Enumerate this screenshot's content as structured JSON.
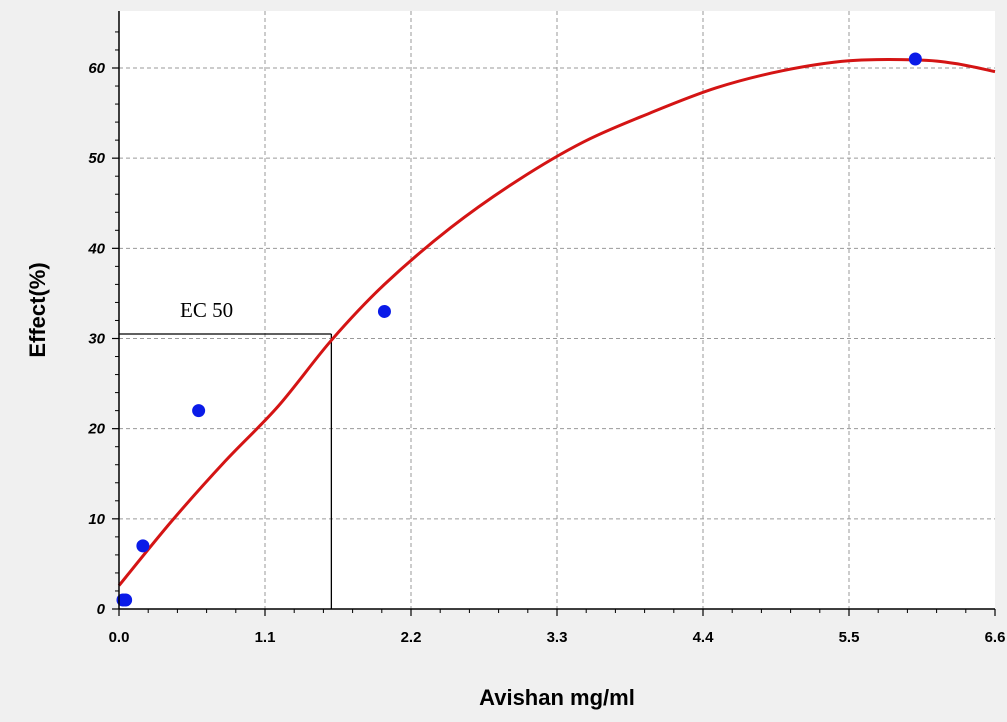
{
  "chart_data": {
    "type": "scatter",
    "title": "",
    "xlabel": "Avishan  mg/ml",
    "ylabel": "Effect(%)",
    "xlim": [
      0,
      6.6
    ],
    "ylim": [
      0,
      65
    ],
    "x_ticks": [
      "0.0",
      "1.1",
      "2.2",
      "3.3",
      "4.4",
      "5.5",
      "6.6"
    ],
    "y_ticks": [
      "0",
      "10",
      "20",
      "30",
      "40",
      "50",
      "60"
    ],
    "grid": true,
    "points": [
      {
        "x": 0.03,
        "y": 1
      },
      {
        "x": 0.05,
        "y": 1
      },
      {
        "x": 0.18,
        "y": 7
      },
      {
        "x": 0.6,
        "y": 22
      },
      {
        "x": 2.0,
        "y": 33
      },
      {
        "x": 6.0,
        "y": 61
      }
    ],
    "fit_curve": [
      {
        "x": 0.0,
        "y": 2.6
      },
      {
        "x": 0.4,
        "y": 9.8
      },
      {
        "x": 0.8,
        "y": 16.4
      },
      {
        "x": 1.2,
        "y": 22.5
      },
      {
        "x": 1.6,
        "y": 29.8
      },
      {
        "x": 2.0,
        "y": 36.0
      },
      {
        "x": 2.5,
        "y": 42.3
      },
      {
        "x": 3.0,
        "y": 47.5
      },
      {
        "x": 3.5,
        "y": 51.8
      },
      {
        "x": 4.0,
        "y": 55.0
      },
      {
        "x": 4.5,
        "y": 57.8
      },
      {
        "x": 5.0,
        "y": 59.7
      },
      {
        "x": 5.5,
        "y": 60.8
      },
      {
        "x": 6.0,
        "y": 60.9
      },
      {
        "x": 6.3,
        "y": 60.5
      },
      {
        "x": 6.6,
        "y": 59.6
      }
    ],
    "point_color": "#0a1be8",
    "curve_color": "#d41414",
    "annotation": {
      "label": "EC 50",
      "x": 1.6,
      "y": 30.5
    }
  }
}
